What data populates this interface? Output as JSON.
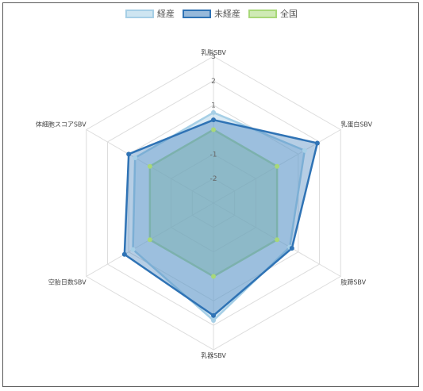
{
  "chart_data": {
    "type": "radar",
    "axes": [
      "乳脂SBV",
      "乳蛋白SBV",
      "肢蹄SBV",
      "乳器SBV",
      "空胎日数SBV",
      "体細胞スコアSBV"
    ],
    "ticks": [
      "-2",
      "-1",
      "",
      "1",
      "2",
      "3"
    ],
    "r_range": [
      -3,
      3
    ],
    "grid": true,
    "legend_position": "top-center",
    "series": [
      {
        "name": "経産",
        "values": [
          0.7,
          1.3,
          0.6,
          1.8,
          0.8,
          0.7
        ],
        "line": "#a6cfe6",
        "fill": "rgba(166,207,230,0.45)"
      },
      {
        "name": "未経産",
        "values": [
          0.4,
          1.9,
          0.7,
          1.6,
          1.2,
          1.0
        ],
        "line": "#2f73b5",
        "fill": "rgba(47,115,181,0.35)"
      },
      {
        "name": "全国",
        "values": [
          0.0,
          0.0,
          0.0,
          0.0,
          0.0,
          0.0
        ],
        "line": "#a8d879",
        "fill": "rgba(168,216,121,0.45)"
      }
    ]
  }
}
